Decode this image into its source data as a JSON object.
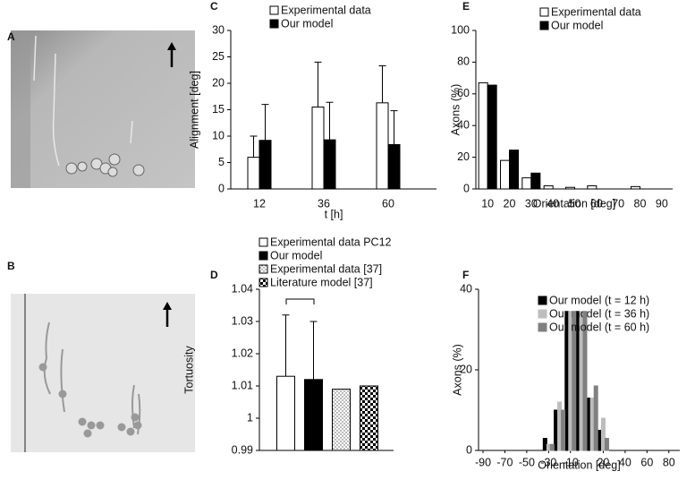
{
  "panel_labels": [
    "A",
    "B",
    "C",
    "D",
    "E",
    "F"
  ],
  "chart_data": [
    {
      "type": "bar",
      "x_label": "t [h]",
      "y_label": "Alignment [deg]",
      "categories": [
        12,
        36,
        60
      ],
      "series": [
        {
          "name": "Experimental data",
          "color": "#ffffff",
          "values": [
            6,
            15.5,
            16.3
          ],
          "errors": [
            4,
            8.5,
            7
          ]
        },
        {
          "name": "Our model",
          "color": "#000000",
          "values": [
            9.2,
            9.3,
            8.4
          ],
          "errors": [
            6.8,
            7.1,
            6.4
          ]
        }
      ],
      "ylim": [
        0,
        30
      ],
      "yticks": [
        0,
        5,
        10,
        15,
        20,
        25,
        30
      ],
      "legend": "top"
    },
    {
      "type": "bar",
      "y_label": "Tortuosity",
      "categories": [
        null
      ],
      "series": [
        {
          "name": "Experimental data PC12",
          "color": "#ffffff",
          "values": [
            1.013
          ],
          "errors": [
            0.019
          ]
        },
        {
          "name": "Our model",
          "color": "#000000",
          "values": [
            1.012
          ],
          "errors": [
            0.018
          ]
        },
        {
          "name": "Experimental data [37]",
          "color": "#ffffff",
          "pattern": "dots",
          "values": [
            1.009
          ]
        },
        {
          "name": "Literature model [37]",
          "color": "#ffffff",
          "pattern": "checker",
          "values": [
            1.01
          ]
        }
      ],
      "ylim": [
        0.99,
        1.04
      ],
      "yticks": [
        0.99,
        1,
        1.01,
        1.02,
        1.03,
        1.04
      ],
      "legend": "top"
    },
    {
      "type": "bar",
      "x_label": "Orientation [deg]",
      "y_label": "Axons (%)",
      "categories": [
        10,
        20,
        30,
        40,
        50,
        60,
        70,
        80,
        90
      ],
      "series": [
        {
          "name": "Experimental data",
          "color": "#ffffff",
          "values": [
            67,
            18,
            7,
            2,
            1,
            2,
            0,
            1.5,
            0
          ]
        },
        {
          "name": "Our model",
          "color": "#000000",
          "values": [
            65.5,
            24.5,
            10,
            0,
            0,
            0,
            0,
            0,
            0
          ]
        }
      ],
      "ylim": [
        0,
        100
      ],
      "yticks": [
        0,
        20,
        40,
        60,
        80,
        100
      ],
      "legend": "top"
    },
    {
      "type": "bar",
      "x_label": "Orientation [deg]",
      "y_label": "Axons (%)",
      "x": [
        -30,
        -20,
        -10,
        0,
        10,
        20,
        30
      ],
      "series": [
        {
          "name": "Our model (t = 12 h)",
          "color": "#000000",
          "values": [
            3,
            10,
            34.5,
            34.5,
            13,
            5,
            0
          ]
        },
        {
          "name": "Our model (t = 36 h)",
          "color": "#bdbdbd",
          "values": [
            1.5,
            12,
            34.5,
            34.5,
            13,
            8,
            0
          ]
        },
        {
          "name": "Our model (t = 60 h)",
          "color": "#808080",
          "values": [
            1.5,
            10,
            34.5,
            34.5,
            16,
            3,
            0
          ]
        }
      ],
      "xlim": [
        -90,
        90
      ],
      "xticks": [
        -90,
        -70,
        -50,
        -30,
        -10,
        20,
        40,
        60,
        80
      ],
      "ylim": [
        0,
        40
      ],
      "yticks": [
        0,
        20,
        40
      ],
      "legend": "top"
    }
  ]
}
